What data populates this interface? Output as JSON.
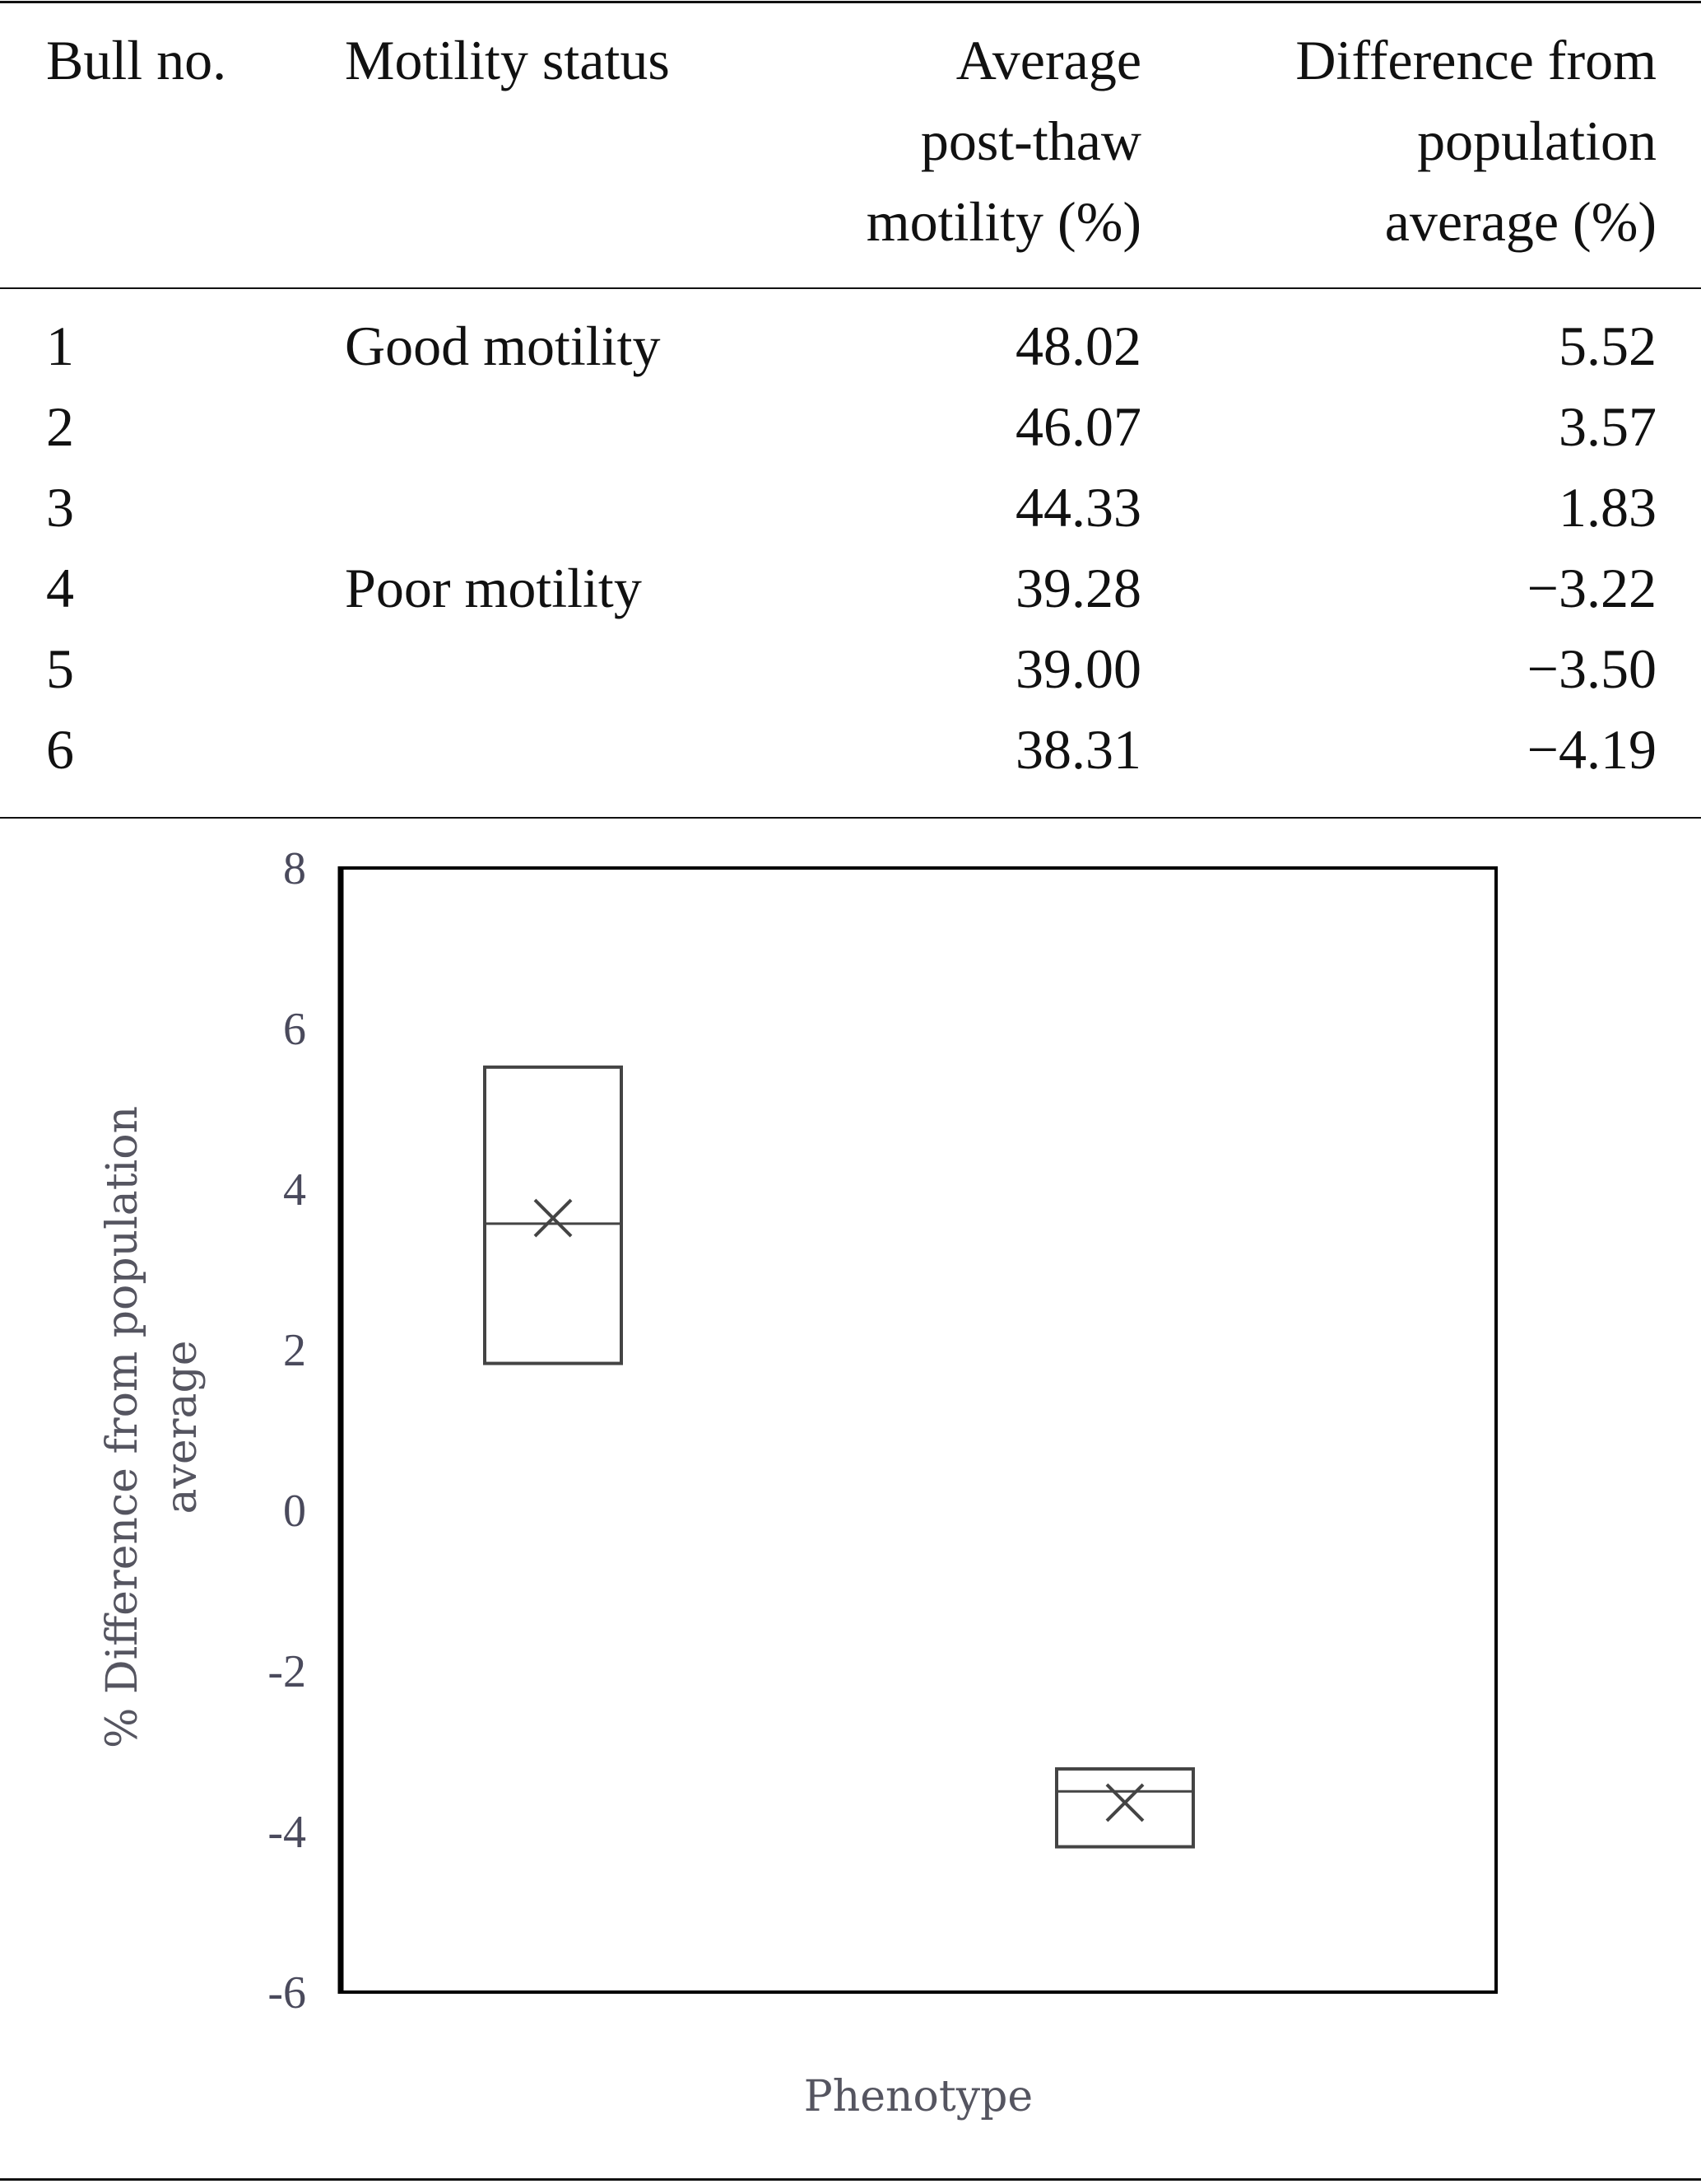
{
  "table": {
    "headers": [
      [
        "Bull no."
      ],
      [
        "Motility status"
      ],
      [
        "Average",
        "post-thaw",
        "motility (%)"
      ],
      [
        "Difference from",
        "population",
        "average (%)"
      ]
    ],
    "rows": [
      {
        "bull": "1",
        "status": "Good motility",
        "avg": "48.02",
        "diff": "5.52"
      },
      {
        "bull": "2",
        "status": "",
        "avg": "46.07",
        "diff": "3.57"
      },
      {
        "bull": "3",
        "status": "",
        "avg": "44.33",
        "diff": "1.83"
      },
      {
        "bull": "4",
        "status": "Poor motility",
        "avg": "39.28",
        "diff": "−3.22"
      },
      {
        "bull": "5",
        "status": "",
        "avg": "39.00",
        "diff": "−3.50"
      },
      {
        "bull": "6",
        "status": "",
        "avg": "38.31",
        "diff": "−4.19"
      }
    ]
  },
  "chart_data": {
    "type": "box",
    "xlabel": "Phenotype",
    "ylabel_lines": [
      "% Difference from population",
      "average"
    ],
    "ylim": [
      -6,
      8
    ],
    "yticks": [
      "8",
      "6",
      "4",
      "2",
      "0",
      "-2",
      "-4",
      "-6"
    ],
    "ytick_values": [
      8,
      6,
      4,
      2,
      0,
      -2,
      -4,
      -6
    ],
    "grid": false,
    "series": [
      {
        "name": "Good motility",
        "min": 1.83,
        "max": 5.52,
        "median": 3.57,
        "mean": 3.64
      },
      {
        "name": "Poor motility",
        "min": -4.19,
        "max": -3.22,
        "median": -3.5,
        "mean": -3.64
      }
    ],
    "colors": {
      "box": "#444444",
      "axis": "#000000"
    }
  }
}
